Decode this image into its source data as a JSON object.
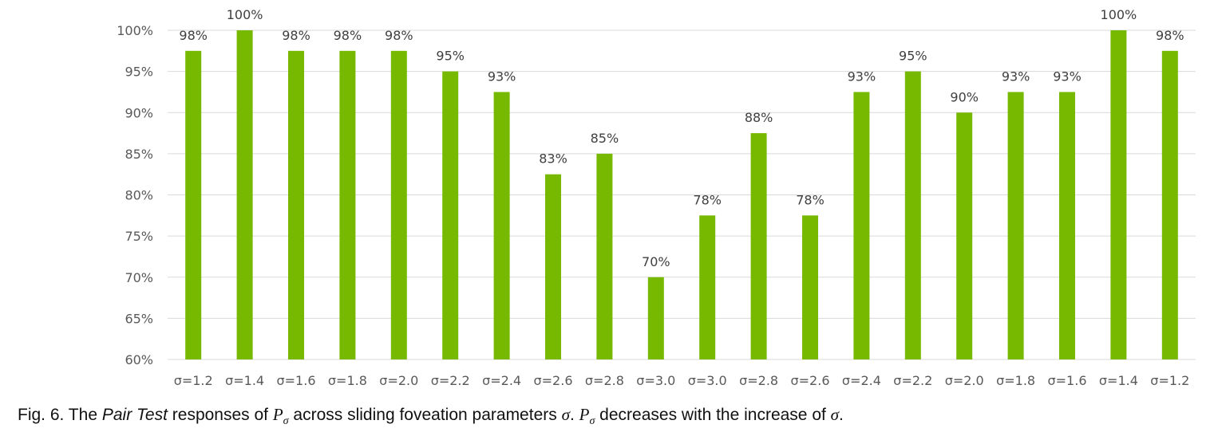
{
  "chart_data": {
    "type": "bar",
    "categories": [
      "σ=1.2",
      "σ=1.4",
      "σ=1.6",
      "σ=1.8",
      "σ=2.0",
      "σ=2.2",
      "σ=2.4",
      "σ=2.6",
      "σ=2.8",
      "σ=3.0",
      "σ=3.0",
      "σ=2.8",
      "σ=2.6",
      "σ=2.4",
      "σ=2.2",
      "σ=2.0",
      "σ=1.8",
      "σ=1.6",
      "σ=1.4",
      "σ=1.2"
    ],
    "values": [
      97.5,
      100,
      97.5,
      97.5,
      97.5,
      95,
      92.5,
      82.5,
      85,
      70,
      77.5,
      87.5,
      77.5,
      92.5,
      95,
      90,
      92.5,
      92.5,
      100,
      97.5
    ],
    "data_labels": [
      "98%",
      "100%",
      "98%",
      "98%",
      "98%",
      "95%",
      "93%",
      "83%",
      "85%",
      "70%",
      "78%",
      "88%",
      "78%",
      "93%",
      "95%",
      "90%",
      "93%",
      "93%",
      "100%",
      "98%"
    ],
    "y_ticks": [
      "60%",
      "65%",
      "70%",
      "75%",
      "80%",
      "85%",
      "90%",
      "95%",
      "100%"
    ],
    "ylim": [
      60,
      100
    ],
    "grid": true,
    "bar_color": "#76b900",
    "gridline_color": "#d9d9d9",
    "title": "",
    "xlabel": "",
    "ylabel": ""
  },
  "caption": {
    "prefix": "Fig. 6. The ",
    "italic_part": "Pair Test",
    "mid1": " responses of ",
    "p_symbol": "P",
    "sub_symbol": "σ",
    "mid2": " across sliding foveation parameters ",
    "sigma": "σ",
    "mid3": ". ",
    "mid4": " decreases with the increase of ",
    "end": "."
  }
}
